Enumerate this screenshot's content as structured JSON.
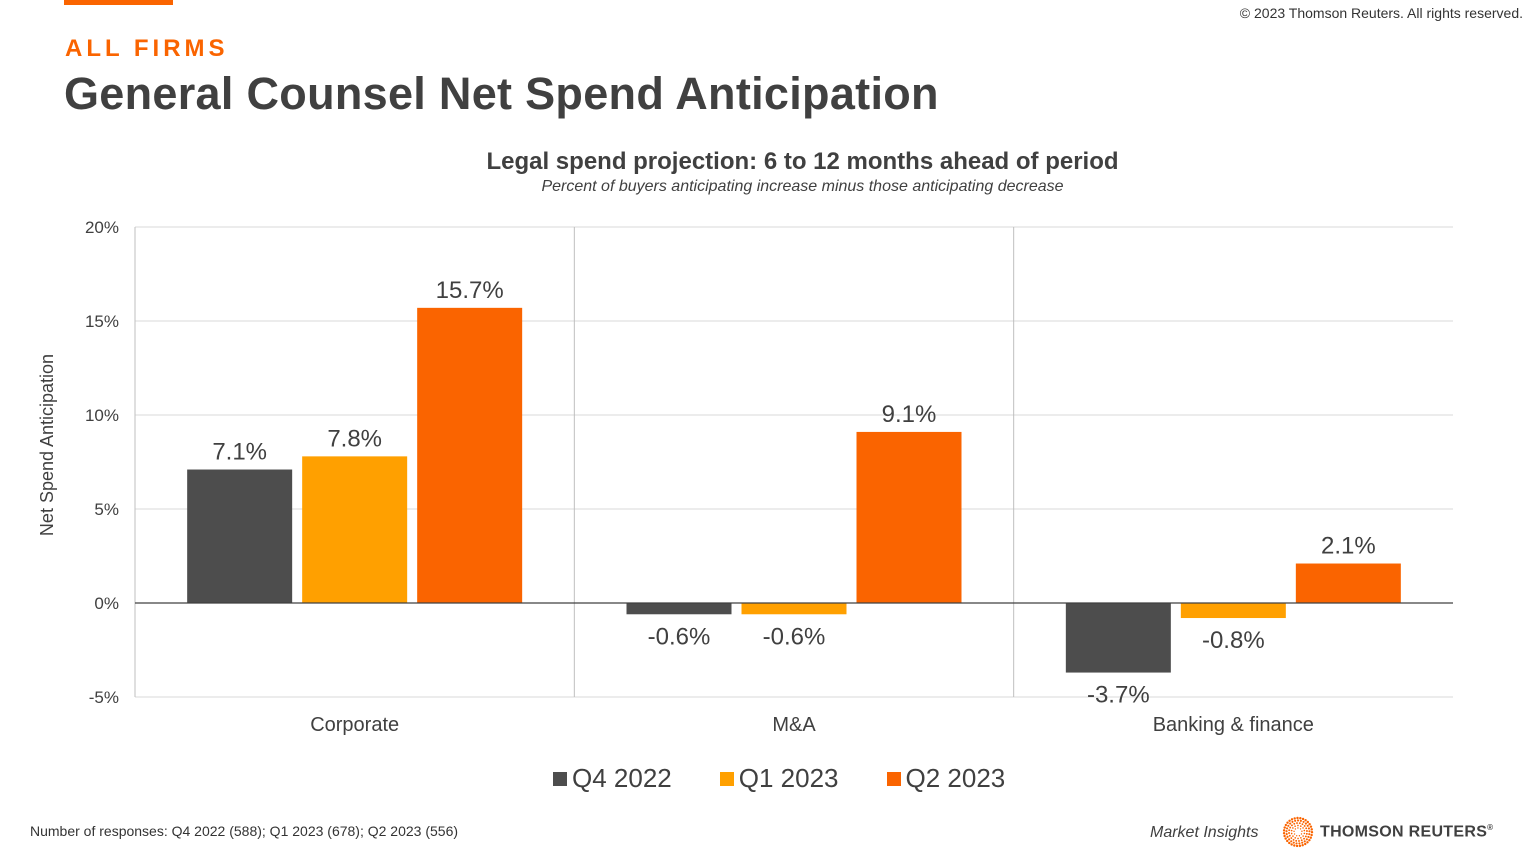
{
  "header": {
    "copyright": "© 2023 Thomson Reuters. All rights reserved.",
    "eyebrow": "ALL FIRMS",
    "title": "General Counsel Net Spend Anticipation"
  },
  "colors": {
    "accent": "#fa6400",
    "q4_2022": "#4d4d4d",
    "q1_2023": "#ffa000",
    "q2_2023": "#fa6400",
    "text": "#404040"
  },
  "chart_data": {
    "type": "bar",
    "title": "Legal spend projection: 6 to 12 months ahead of period",
    "subtitle": "Percent of buyers anticipating increase minus those anticipating decrease",
    "xlabel": "",
    "ylabel": "Net Spend Anticipation",
    "ylim": [
      -5,
      20
    ],
    "yticks": [
      20,
      15,
      10,
      5,
      0,
      -5
    ],
    "ytick_labels": [
      "20%",
      "15%",
      "10%",
      "5%",
      "0%",
      "-5%"
    ],
    "grid": true,
    "legend_position": "bottom",
    "categories": [
      "Corporate",
      "M&A",
      "Banking & finance"
    ],
    "series": [
      {
        "name": "Q4 2022",
        "color": "#4d4d4d",
        "values": [
          7.1,
          -0.6,
          -3.7
        ],
        "labels": [
          "7.1%",
          "-0.6%",
          "-3.7%"
        ]
      },
      {
        "name": "Q1 2023",
        "color": "#ffa000",
        "values": [
          7.8,
          -0.6,
          -0.8
        ],
        "labels": [
          "7.8%",
          "-0.6%",
          "-0.8%"
        ]
      },
      {
        "name": "Q2 2023",
        "color": "#fa6400",
        "values": [
          15.7,
          9.1,
          2.1
        ],
        "labels": [
          "15.7%",
          "9.1%",
          "2.1%"
        ]
      }
    ]
  },
  "footer": {
    "responses_note": "Number of responses: Q4 2022 (588); Q1 2023 (678); Q2 2023 (556)",
    "market_insights": "Market Insights",
    "brand_name": "THOMSON REUTERS",
    "brand_reg": "®"
  }
}
